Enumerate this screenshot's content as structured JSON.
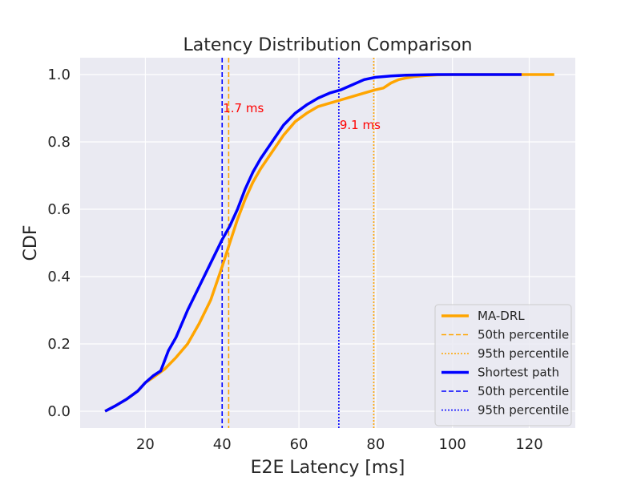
{
  "chart_data": {
    "type": "line",
    "title": "Latency Distribution Comparison",
    "xlabel": "E2E Latency [ms]",
    "ylabel": "CDF",
    "xlim": [
      3,
      132
    ],
    "ylim": [
      -0.05,
      1.05
    ],
    "xticks": [
      20,
      40,
      60,
      80,
      100,
      120
    ],
    "yticks": [
      0.0,
      0.2,
      0.4,
      0.6,
      0.8,
      1.0
    ],
    "grid": true,
    "legend_position": "lower-right",
    "series": [
      {
        "name": "MA-DRL",
        "color": "#ffa500",
        "x": [
          9.5,
          12,
          15,
          18,
          20,
          22,
          25,
          28,
          31,
          34,
          37,
          40,
          42,
          44,
          46,
          48,
          50,
          53,
          56,
          59,
          62,
          65,
          68,
          71,
          74,
          77,
          80,
          82,
          84,
          86,
          88,
          90,
          93,
          96,
          100,
          105,
          110,
          118,
          126.5
        ],
        "y": [
          0.0,
          0.015,
          0.035,
          0.06,
          0.085,
          0.1,
          0.125,
          0.16,
          0.2,
          0.26,
          0.33,
          0.43,
          0.5,
          0.57,
          0.63,
          0.68,
          0.72,
          0.77,
          0.82,
          0.86,
          0.885,
          0.905,
          0.915,
          0.925,
          0.935,
          0.945,
          0.955,
          0.96,
          0.975,
          0.985,
          0.99,
          0.994,
          0.997,
          0.999,
          1.0,
          1.0,
          1.0,
          1.0,
          1.0
        ]
      },
      {
        "name": "Shortest path",
        "color": "#0000ff",
        "x": [
          9.5,
          12,
          15,
          18,
          20,
          22,
          24,
          26,
          28,
          31,
          34,
          37,
          40,
          42,
          44,
          46,
          48,
          50,
          53,
          56,
          59,
          62,
          65,
          68,
          71,
          74,
          77,
          80,
          84,
          88,
          92,
          96,
          100,
          105,
          110,
          118
        ],
        "y": [
          0.0,
          0.015,
          0.035,
          0.06,
          0.085,
          0.105,
          0.12,
          0.18,
          0.22,
          0.3,
          0.37,
          0.44,
          0.51,
          0.55,
          0.6,
          0.66,
          0.71,
          0.75,
          0.8,
          0.85,
          0.885,
          0.91,
          0.93,
          0.945,
          0.955,
          0.97,
          0.985,
          0.992,
          0.996,
          0.998,
          0.999,
          1.0,
          1.0,
          1.0,
          1.0,
          1.0
        ]
      }
    ],
    "percentile_lines": [
      {
        "label": "50th percentile",
        "x": 41.7,
        "color": "#ffa500",
        "style": "dashed"
      },
      {
        "label": "95th percentile",
        "x": 79.5,
        "color": "#ffa500",
        "style": "dotted"
      },
      {
        "label": "50th percentile",
        "x": 40.0,
        "color": "#0000ff",
        "style": "dashed"
      },
      {
        "label": "95th percentile",
        "x": 70.4,
        "color": "#0000ff",
        "style": "dotted"
      }
    ],
    "annotations": [
      {
        "text": "1.7 ms",
        "x": 40.2,
        "y": 0.9
      },
      {
        "text": "9.1 ms",
        "x": 70.6,
        "y": 0.85
      }
    ],
    "legend": [
      {
        "label": "MA-DRL",
        "color": "#ffa500",
        "style": "solid"
      },
      {
        "label": "50th percentile",
        "color": "#ffa500",
        "style": "dashed"
      },
      {
        "label": "95th percentile",
        "color": "#ffa500",
        "style": "dotted"
      },
      {
        "label": "Shortest path",
        "color": "#0000ff",
        "style": "solid"
      },
      {
        "label": "50th percentile",
        "color": "#0000ff",
        "style": "dashed"
      },
      {
        "label": "95th percentile",
        "color": "#0000ff",
        "style": "dotted"
      }
    ],
    "colors": {
      "plot_background": "#eaeaf2",
      "grid": "#ffffff"
    }
  }
}
